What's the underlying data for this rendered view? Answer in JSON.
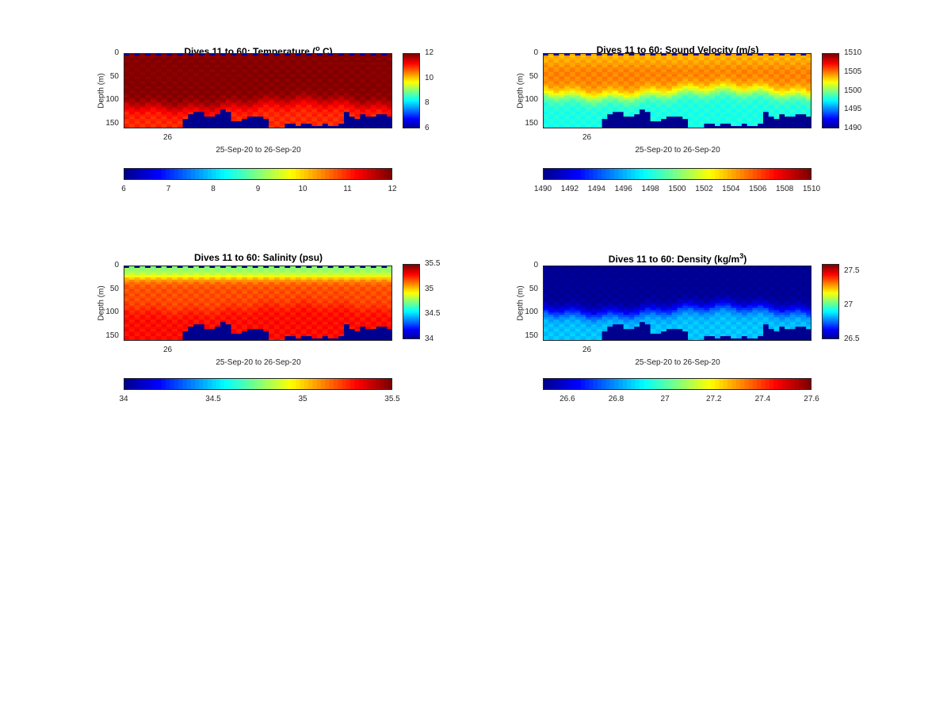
{
  "window": {
    "title": ""
  },
  "colors": {
    "colormap": [
      "#00008f",
      "#0000ff",
      "#0080ff",
      "#00ffff",
      "#80ff80",
      "#ffff00",
      "#ff8000",
      "#ff0000",
      "#800000"
    ],
    "background": "#ffffff",
    "frame": "#262626"
  },
  "chart_data": [
    {
      "type": "heatmap",
      "id": "temperature",
      "title_text": "Dives 11 to 60: Temperature (",
      "title_sup": "o",
      "title_tail": " C)",
      "ylabel": "Depth (m)",
      "xlabel": "25-Sep-20 to 26-Sep-20",
      "x_tick_labels": [
        "26"
      ],
      "y_ticks": [
        0,
        50,
        100,
        150
      ],
      "ylim": [
        0,
        160
      ],
      "dives": [
        11,
        60
      ],
      "colorbar_vertical": {
        "range": [
          6,
          12
        ],
        "ticks": [
          6,
          8,
          10,
          12
        ]
      },
      "colorbar_horizontal": {
        "range": [
          6,
          12
        ],
        "ticks": [
          6,
          7,
          8,
          9,
          10,
          11,
          12
        ]
      },
      "profile": {
        "surface": 12,
        "mid": 12,
        "deep": 11,
        "transition_depth": 110,
        "bottom_fill": 6
      }
    },
    {
      "type": "heatmap",
      "id": "sound-velocity",
      "title_text": "Dives 11 to 60: Sound Velocity (m/s)",
      "ylabel": "Depth (m)",
      "xlabel": "25-Sep-20 to 26-Sep-20",
      "x_tick_labels": [
        "26"
      ],
      "y_ticks": [
        0,
        50,
        100,
        150
      ],
      "ylim": [
        0,
        160
      ],
      "dives": [
        11,
        60
      ],
      "colorbar_vertical": {
        "range": [
          1490,
          1510
        ],
        "ticks": [
          1490,
          1495,
          1500,
          1505,
          1510
        ]
      },
      "colorbar_horizontal": {
        "range": [
          1490,
          1510
        ],
        "ticks": [
          1490,
          1492,
          1494,
          1496,
          1498,
          1500,
          1502,
          1504,
          1506,
          1508,
          1510
        ]
      },
      "profile": {
        "surface": 1504,
        "mid": 1505,
        "deep": 1498,
        "transition_depth": 85,
        "bottom_fill": 1490
      }
    },
    {
      "type": "heatmap",
      "id": "salinity",
      "title_text": "Dives 11 to 60: Salinity (psu)",
      "ylabel": "Depth (m)",
      "xlabel": "25-Sep-20 to 26-Sep-20",
      "x_tick_labels": [
        "26"
      ],
      "y_ticks": [
        0,
        50,
        100,
        150
      ],
      "ylim": [
        0,
        160
      ],
      "dives": [
        11,
        60
      ],
      "colorbar_vertical": {
        "range": [
          34,
          35.5
        ],
        "ticks": [
          34,
          34.5,
          35,
          35.5
        ]
      },
      "colorbar_horizontal": {
        "range": [
          34,
          35.5
        ],
        "ticks": [
          34,
          34.5,
          35,
          35.5
        ]
      },
      "profile": {
        "surface": 34.75,
        "mid": 35.2,
        "deep": 35.3,
        "transition_depth": 90,
        "bottom_fill": 34
      }
    },
    {
      "type": "heatmap",
      "id": "density",
      "title_text": "Dives 11 to 60: Density (kg/m",
      "title_sup": "3",
      "title_tail": ")",
      "ylabel": "Depth (m)",
      "xlabel": "25-Sep-20 to 26-Sep-20",
      "x_tick_labels": [
        "26"
      ],
      "y_ticks": [
        0,
        50,
        100,
        150
      ],
      "ylim": [
        0,
        160
      ],
      "dives": [
        11,
        60
      ],
      "colorbar_vertical": {
        "range": [
          26.5,
          27.6
        ],
        "ticks": [
          26.5,
          27,
          27.5
        ]
      },
      "colorbar_horizontal": {
        "range": [
          26.5,
          27.6
        ],
        "ticks": [
          26.6,
          26.8,
          27,
          27.2,
          27.4,
          27.6
        ]
      },
      "profile": {
        "surface": 26.5,
        "mid": 26.5,
        "deep": 26.85,
        "transition_depth": 95,
        "bottom_fill": 26.5
      }
    }
  ]
}
